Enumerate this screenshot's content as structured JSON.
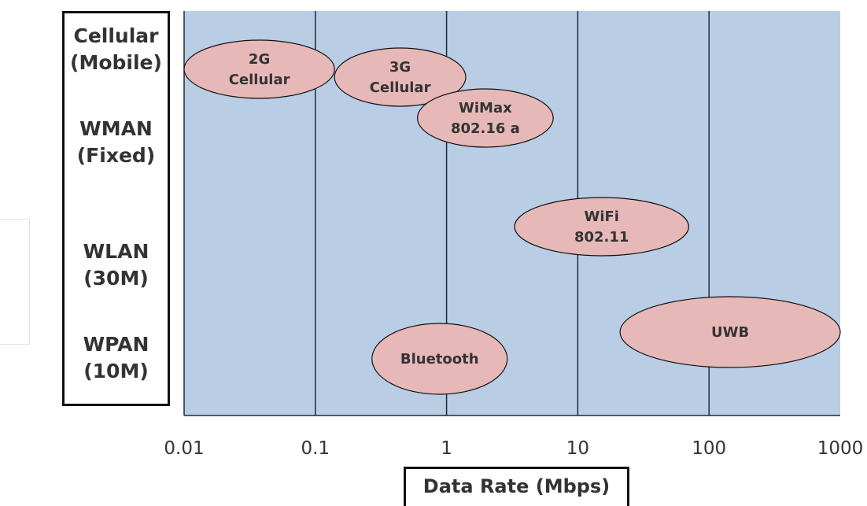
{
  "categories": [
    {
      "label": "Cellular\n(Mobile)"
    },
    {
      "label": "WMAN\n(Fixed)"
    },
    {
      "label": "WLAN\n(30M)"
    },
    {
      "label": "WPAN\n(10M)"
    }
  ],
  "x_axis": {
    "label": "Data Rate (Mbps)",
    "scale": "log",
    "ticks": [
      "0.01",
      "0.1",
      "1",
      "10",
      "100",
      "1000"
    ]
  },
  "technologies": [
    {
      "lines": [
        "2G",
        "Cellular"
      ],
      "category": "Cellular\n(Mobile)",
      "rate_mbps_range": [
        0.01,
        0.14
      ]
    },
    {
      "lines": [
        "3G",
        "Cellular"
      ],
      "category": "Cellular\n(Mobile)",
      "rate_mbps_range": [
        0.14,
        1.4
      ]
    },
    {
      "lines": [
        "WiMax",
        "802.16 a"
      ],
      "category": "WMAN\n(Fixed)",
      "rate_mbps_range": [
        0.6,
        6.5
      ]
    },
    {
      "lines": [
        "WiFi",
        "802.11"
      ],
      "category": "WLAN\n(30M)",
      "rate_mbps_range": [
        3.3,
        70
      ]
    },
    {
      "lines": [
        "UWB"
      ],
      "category": "WPAN\n(10M)",
      "rate_mbps_range": [
        21,
        1000
      ]
    },
    {
      "lines": [
        "Bluetooth"
      ],
      "category": "WPAN\n(10M)",
      "rate_mbps_range": [
        0.27,
        2.9
      ]
    }
  ],
  "colors": {
    "plot_background": "#b9cde4",
    "grid_line": "#1f2b36",
    "ellipse_fill": "#e6b9b8",
    "ellipse_stroke": "#111111",
    "text": "#333333"
  }
}
